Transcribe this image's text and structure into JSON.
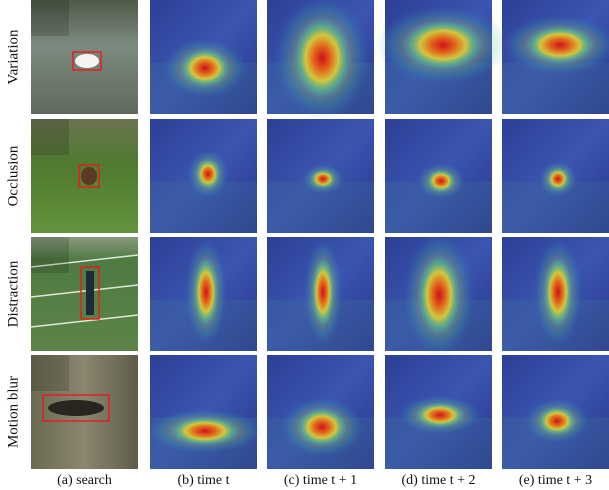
{
  "figure": {
    "row_labels": [
      "Variation",
      "Occlusion",
      "Distraction",
      "Motion blur"
    ],
    "column_captions": [
      "(a) search",
      "(b) time t",
      "(c) time t + 1",
      "(d) time t + 2",
      "(e) time t + 3"
    ]
  }
}
